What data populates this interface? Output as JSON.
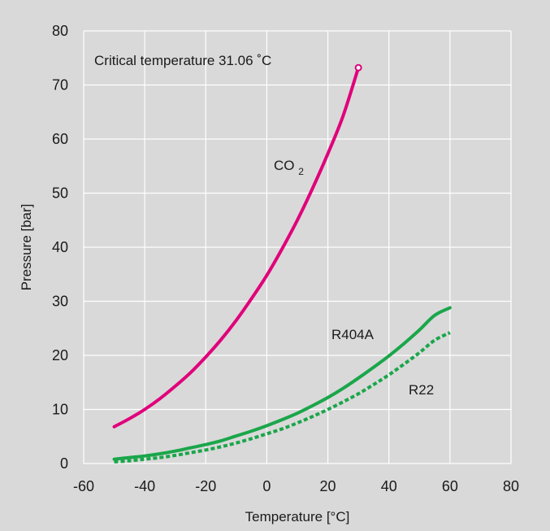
{
  "chart_data": {
    "type": "line",
    "xlabel": "Temperature [°C]",
    "ylabel": "Pressure [bar]",
    "xlim": [
      -60,
      80
    ],
    "ylim": [
      0,
      80
    ],
    "xticks": [
      -60,
      -40,
      -20,
      0,
      20,
      40,
      60,
      80
    ],
    "yticks": [
      0,
      10,
      20,
      30,
      40,
      50,
      60,
      70,
      80
    ],
    "grid": true,
    "background": "#d9d9d9",
    "grid_color": "#ffffff",
    "annotations": [
      {
        "text": "Critical temperature 31.06 ˚C"
      }
    ],
    "series": [
      {
        "name": "CO2",
        "label_main": "CO",
        "label_sub": "2",
        "color": "#e0007a",
        "style": "solid",
        "end_marker": "open-circle",
        "x": [
          -50,
          -45,
          -40,
          -35,
          -30,
          -25,
          -20,
          -15,
          -10,
          -5,
          0,
          5,
          10,
          15,
          20,
          25,
          30
        ],
        "y": [
          6.8,
          8.3,
          10.0,
          12.0,
          14.3,
          16.8,
          19.7,
          22.9,
          26.5,
          30.5,
          34.8,
          39.7,
          45.0,
          50.9,
          57.3,
          64.3,
          73.2
        ]
      },
      {
        "name": "R404A",
        "color": "#1aa64a",
        "style": "solid",
        "x": [
          -50,
          -45,
          -40,
          -35,
          -30,
          -25,
          -20,
          -15,
          -10,
          -5,
          0,
          5,
          10,
          15,
          20,
          25,
          30,
          35,
          40,
          45,
          50,
          55,
          60
        ],
        "y": [
          0.8,
          1.1,
          1.4,
          1.8,
          2.3,
          2.9,
          3.5,
          4.2,
          5.1,
          6.0,
          7.0,
          8.1,
          9.3,
          10.7,
          12.2,
          13.9,
          15.8,
          17.8,
          19.9,
          22.2,
          24.7,
          27.4,
          28.8
        ]
      },
      {
        "name": "R22",
        "color": "#1aa64a",
        "style": "dotted",
        "x": [
          -50,
          -45,
          -40,
          -35,
          -30,
          -25,
          -20,
          -15,
          -10,
          -5,
          0,
          5,
          10,
          15,
          20,
          25,
          30,
          35,
          40,
          45,
          50,
          55,
          60
        ],
        "y": [
          0.3,
          0.5,
          0.8,
          1.1,
          1.5,
          2.0,
          2.5,
          3.1,
          3.8,
          4.6,
          5.5,
          6.4,
          7.5,
          8.7,
          10.0,
          11.4,
          12.9,
          14.6,
          16.4,
          18.4,
          20.5,
          22.8,
          24.2
        ]
      }
    ]
  }
}
